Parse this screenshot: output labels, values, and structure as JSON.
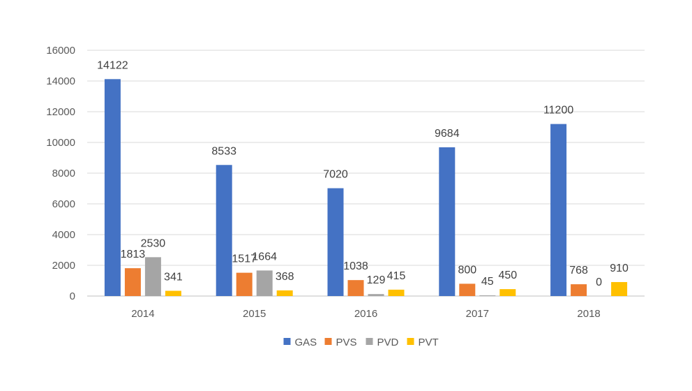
{
  "chart_data": {
    "type": "bar",
    "title": "",
    "xlabel": "",
    "ylabel": "",
    "categories": [
      "2014",
      "2015",
      "2016",
      "2017",
      "2018"
    ],
    "series": [
      {
        "name": "GAS",
        "color": "#4472C4",
        "values": [
          14122,
          8533,
          7020,
          9684,
          11200
        ]
      },
      {
        "name": "PVS",
        "color": "#ED7D31",
        "values": [
          1813,
          1517,
          1038,
          800,
          768
        ]
      },
      {
        "name": "PVD",
        "color": "#A5A5A5",
        "values": [
          2530,
          1664,
          129,
          45,
          0
        ]
      },
      {
        "name": "PVT",
        "color": "#FFC000",
        "values": [
          341,
          368,
          415,
          450,
          910
        ]
      }
    ],
    "ylim": [
      0,
      16000
    ],
    "yticks": [
      "0",
      "2000",
      "4000",
      "6000",
      "8000",
      "10000",
      "12000",
      "14000",
      "16000"
    ],
    "grid": true,
    "legend_position": "bottom"
  }
}
